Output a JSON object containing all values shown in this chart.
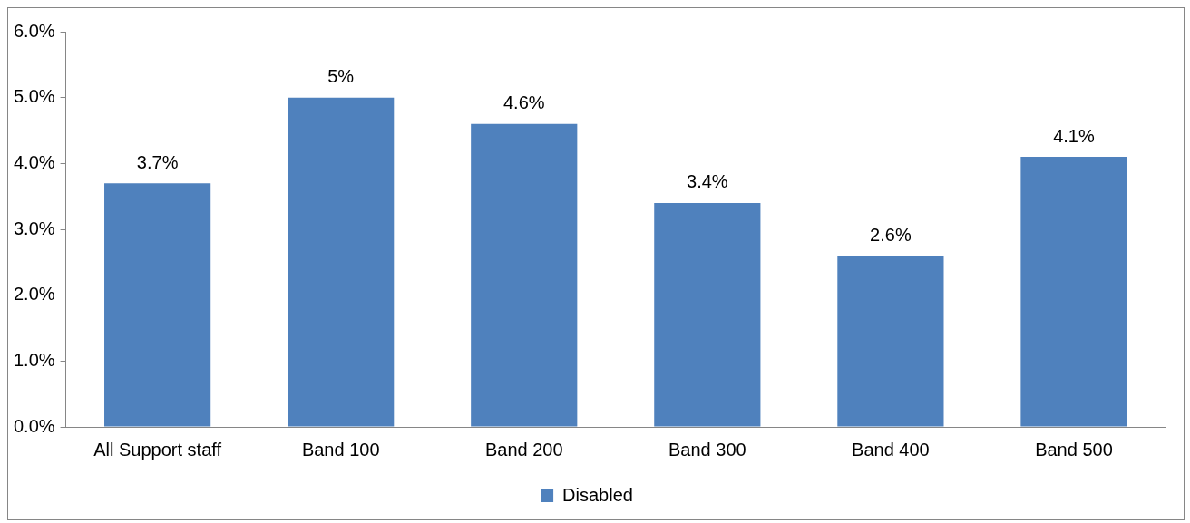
{
  "chart_data": {
    "type": "bar",
    "categories": [
      "All Support staff",
      "Band 100",
      "Band 200",
      "Band 300",
      "Band 400",
      "Band 500"
    ],
    "series": [
      {
        "name": "Disabled",
        "color": "#4f81bd",
        "values": [
          3.7,
          5,
          4.6,
          3.4,
          2.6,
          4.1
        ],
        "value_labels": [
          "3.7%",
          "5%",
          "4.6%",
          "3.4%",
          "2.6%",
          "4.1%"
        ]
      }
    ],
    "ylim": [
      0,
      6
    ],
    "yticks": [
      {
        "value": 0,
        "label": "0.0%"
      },
      {
        "value": 1,
        "label": "1.0%"
      },
      {
        "value": 2,
        "label": "2.0%"
      },
      {
        "value": 3,
        "label": "3.0%"
      },
      {
        "value": 4,
        "label": "4.0%"
      },
      {
        "value": 5,
        "label": "5.0%"
      },
      {
        "value": 6,
        "label": "6.0%"
      }
    ],
    "grid": false,
    "legend": "bottom"
  }
}
